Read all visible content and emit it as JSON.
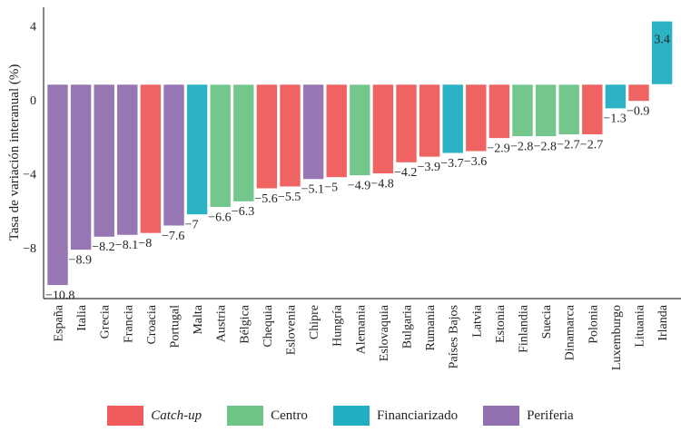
{
  "chart_data": {
    "type": "bar",
    "ylabel": "Tasa de variación interanual (%)",
    "ylim": [
      -10.8,
      4
    ],
    "yticks": [
      4,
      0,
      -4,
      -8
    ],
    "categories": [
      "España",
      "Italia",
      "Grecia",
      "Francia",
      "Croacia",
      "Portugal",
      "Malta",
      "Austria",
      "Bélgica",
      "Chequia",
      "Eslovenia",
      "Chipre",
      "Hungría",
      "Alemania",
      "Eslovaquia",
      "Bulgaria",
      "Rumania",
      "Países Bajos",
      "Latvia",
      "Estonia",
      "Finlandia",
      "Suecia",
      "Dinamarca",
      "Polonia",
      "Luxemburgo",
      "Lituania",
      "Irlanda"
    ],
    "values": [
      -10.8,
      -8.9,
      -8.2,
      -8.1,
      -8,
      -7.6,
      -7,
      -6.6,
      -6.3,
      -5.6,
      -5.5,
      -5.1,
      -5,
      -4.9,
      -4.8,
      -4.2,
      -3.9,
      -3.7,
      -3.6,
      -2.9,
      -2.8,
      -2.8,
      -2.7,
      -2.7,
      -1.3,
      -0.9,
      3.4
    ],
    "groups": [
      "Periferia",
      "Periferia",
      "Periferia",
      "Periferia",
      "Catch-up",
      "Periferia",
      "Financiarizado",
      "Centro",
      "Centro",
      "Catch-up",
      "Catch-up",
      "Periferia",
      "Catch-up",
      "Centro",
      "Catch-up",
      "Catch-up",
      "Catch-up",
      "Financiarizado",
      "Catch-up",
      "Catch-up",
      "Centro",
      "Centro",
      "Centro",
      "Catch-up",
      "Financiarizado",
      "Catch-up",
      "Financiarizado"
    ],
    "legend": [
      {
        "name": "Catch-up",
        "color": "#ef5b5b",
        "italic": true
      },
      {
        "name": "Centro",
        "color": "#6cc486"
      },
      {
        "name": "Financiarizado",
        "color": "#20aec2"
      },
      {
        "name": "Periferia",
        "color": "#9170b0"
      }
    ],
    "legend_position": "bottom",
    "grid": false
  }
}
